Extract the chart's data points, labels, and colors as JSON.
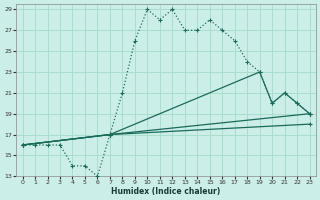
{
  "xlabel": "Humidex (Indice chaleur)",
  "bg_color": "#cceee8",
  "grid_color": "#aaddcc",
  "line_color": "#1a6a5a",
  "xlim": [
    -0.5,
    23.5
  ],
  "ylim": [
    13,
    29.5
  ],
  "xticks": [
    0,
    1,
    2,
    3,
    4,
    5,
    6,
    7,
    8,
    9,
    10,
    11,
    12,
    13,
    14,
    15,
    16,
    17,
    18,
    19,
    20,
    21,
    22,
    23
  ],
  "yticks": [
    13,
    15,
    17,
    19,
    21,
    23,
    25,
    27,
    29
  ],
  "lines": [
    {
      "x": [
        0,
        1,
        2,
        3,
        4,
        5,
        6,
        7,
        8,
        9,
        10,
        11,
        12,
        13,
        14,
        15,
        16,
        17,
        18,
        19,
        20,
        21,
        22,
        23
      ],
      "y": [
        16,
        16,
        16,
        16,
        14,
        14,
        13,
        17,
        21,
        26,
        29,
        28,
        29,
        27,
        27,
        28,
        27,
        26,
        24,
        23,
        20,
        21,
        20,
        19
      ],
      "dotted": true,
      "has_markers": true
    },
    {
      "x": [
        0,
        7,
        19,
        20,
        21,
        22,
        23
      ],
      "y": [
        16,
        17,
        23,
        20,
        21,
        20,
        19
      ],
      "dotted": false,
      "has_markers": true
    },
    {
      "x": [
        0,
        7,
        23
      ],
      "y": [
        16,
        17,
        19
      ],
      "dotted": false,
      "has_markers": true
    },
    {
      "x": [
        0,
        7,
        23
      ],
      "y": [
        16,
        17,
        18
      ],
      "dotted": false,
      "has_markers": true
    }
  ]
}
